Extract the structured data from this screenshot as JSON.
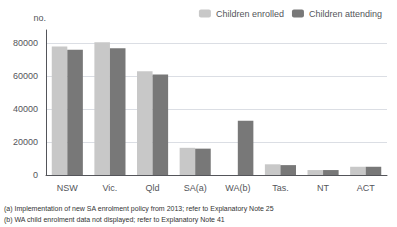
{
  "chart_data": {
    "type": "bar",
    "categories": [
      "NSW",
      "Vic.",
      "Qld",
      "SA(a)",
      "WA(b)",
      "Tas.",
      "NT",
      "ACT"
    ],
    "series": [
      {
        "name": "Children enrolled",
        "color": "#c8c8c8",
        "values": [
          78000,
          80500,
          63000,
          16500,
          0,
          6500,
          3000,
          5000
        ]
      },
      {
        "name": "Children attending",
        "color": "#787878",
        "values": [
          76000,
          77000,
          61000,
          16000,
          33000,
          6000,
          3000,
          5000
        ]
      }
    ],
    "ylabel": "no.",
    "ylim": [
      0,
      88000
    ],
    "yticks": [
      0,
      20000,
      40000,
      60000,
      80000
    ],
    "grid": true,
    "legend": "upper right",
    "annotations": [
      "(a) Implementation of new SA enrolment policy from 2013; refer to Explanatory Note 25",
      "(b) WA child enrolment data not displayed; refer to Explanatory Note 41"
    ]
  }
}
